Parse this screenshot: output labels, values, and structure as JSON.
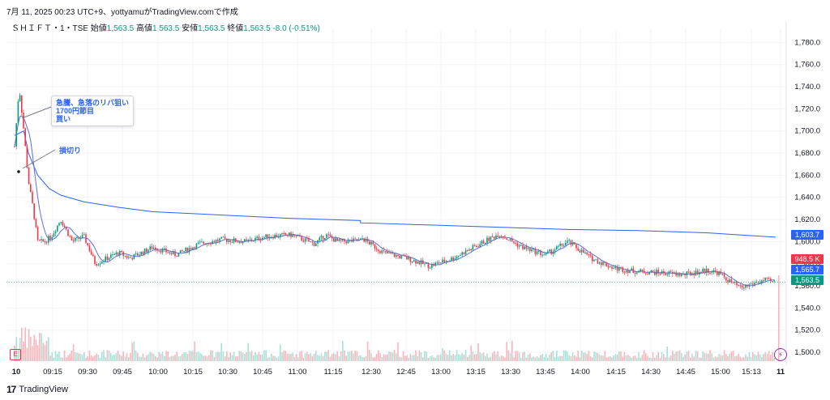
{
  "header": {
    "text": "7月 11, 2025 00:23 UTC+9、yottyamuがTradingView.comで作成"
  },
  "symbol": {
    "name": "ＳＨＩＦＴ・1・TSE",
    "open_label": "始値",
    "open_value": "1,563.5",
    "high_label": "高値",
    "high_value": "1,563.5",
    "low_label": "安値",
    "low_value": "1,563.5",
    "close_label": "終値",
    "close_value": "1,563.5",
    "change": "-8.0 (-0.51%)"
  },
  "annotations": {
    "callout1": [
      "急騰、急落のリバ狙い",
      "1700円節目",
      "買い"
    ],
    "callout2": "損切り"
  },
  "price_tags": {
    "vwap": "1,603.7",
    "volume": "948.5 K",
    "ma": "1,565.7",
    "last": "1,563.5"
  },
  "footer": {
    "brand": "TradingView"
  },
  "badges": {
    "earnings": "E"
  },
  "colors": {
    "up": "#089981",
    "down": "#f23645",
    "vwap": "#2962ff",
    "ma": "#5b6ee1",
    "grid": "#f0f3fa",
    "volume_up": "#a6e3d7",
    "volume_down": "#f7b7bc"
  },
  "chart_data": {
    "type": "candlestick",
    "interval": "1 minute",
    "y_ticks": [
      1780,
      1760,
      1740,
      1720,
      1700,
      1680,
      1660,
      1640,
      1620,
      1600,
      1580,
      1560,
      1540,
      1520,
      1500
    ],
    "y_tick_labels": [
      "1,780.0",
      "1,760.0",
      "1,740.0",
      "1,720.0",
      "1,700.0",
      "1,680.0",
      "1,660.0",
      "1,640.0",
      "1,620.0",
      "1,600.0",
      "1,580.0",
      "1,560.0",
      "1,540.0",
      "1,520.0",
      "1,500.0"
    ],
    "ylim": [
      1492,
      1792
    ],
    "x_labels": [
      "10",
      "09:15",
      "09:30",
      "09:45",
      "10:00",
      "10:15",
      "10:30",
      "10:45",
      "11:00",
      "11:15",
      "12:30",
      "12:45",
      "13:00",
      "13:15",
      "13:30",
      "13:45",
      "14:00",
      "14:15",
      "14:30",
      "14:45",
      "15:00",
      "15:13",
      "11"
    ],
    "price_path": {
      "x": [
        "09:00",
        "09:02",
        "09:04",
        "09:06",
        "09:08",
        "09:10",
        "09:13",
        "09:16",
        "09:20",
        "09:25",
        "09:30",
        "09:35",
        "09:40",
        "09:45",
        "09:50",
        "09:55",
        "10:00",
        "10:10",
        "10:20",
        "10:30",
        "10:40",
        "10:50",
        "11:00",
        "11:10",
        "11:15",
        "11:20",
        "11:30",
        "12:30",
        "12:40",
        "12:50",
        "13:00",
        "13:10",
        "13:20",
        "13:30",
        "13:40",
        "13:50",
        "14:00",
        "14:10",
        "14:20",
        "14:30",
        "14:40",
        "14:50",
        "15:00",
        "15:05",
        "15:10",
        "15:15",
        "15:20",
        "15:25",
        "15:30"
      ],
      "close": [
        1686,
        1740,
        1700,
        1655,
        1630,
        1600,
        1600,
        1605,
        1620,
        1600,
        1605,
        1580,
        1585,
        1590,
        1585,
        1590,
        1595,
        1588,
        1598,
        1602,
        1600,
        1605,
        1606,
        1598,
        1606,
        1600,
        1601,
        1604,
        1590,
        1585,
        1578,
        1585,
        1596,
        1607,
        1595,
        1588,
        1600,
        1585,
        1576,
        1573,
        1572,
        1570,
        1574,
        1572,
        1564,
        1558,
        1562,
        1565,
        1563
      ]
    },
    "vwap": {
      "x": [
        "09:00",
        "09:02",
        "09:04",
        "09:06",
        "09:10",
        "09:15",
        "09:20",
        "09:30",
        "09:45",
        "10:00",
        "10:30",
        "11:00",
        "11:30",
        "12:30",
        "13:00",
        "13:30",
        "14:00",
        "14:30",
        "15:00",
        "15:15",
        "15:30"
      ],
      "values": [
        1696,
        1698,
        1700,
        1680,
        1660,
        1648,
        1642,
        1636,
        1631,
        1627,
        1624,
        1621,
        1619,
        1617,
        1615,
        1613,
        1611,
        1610,
        1608,
        1606,
        1604
      ]
    },
    "volume_scale": "relative"
  }
}
